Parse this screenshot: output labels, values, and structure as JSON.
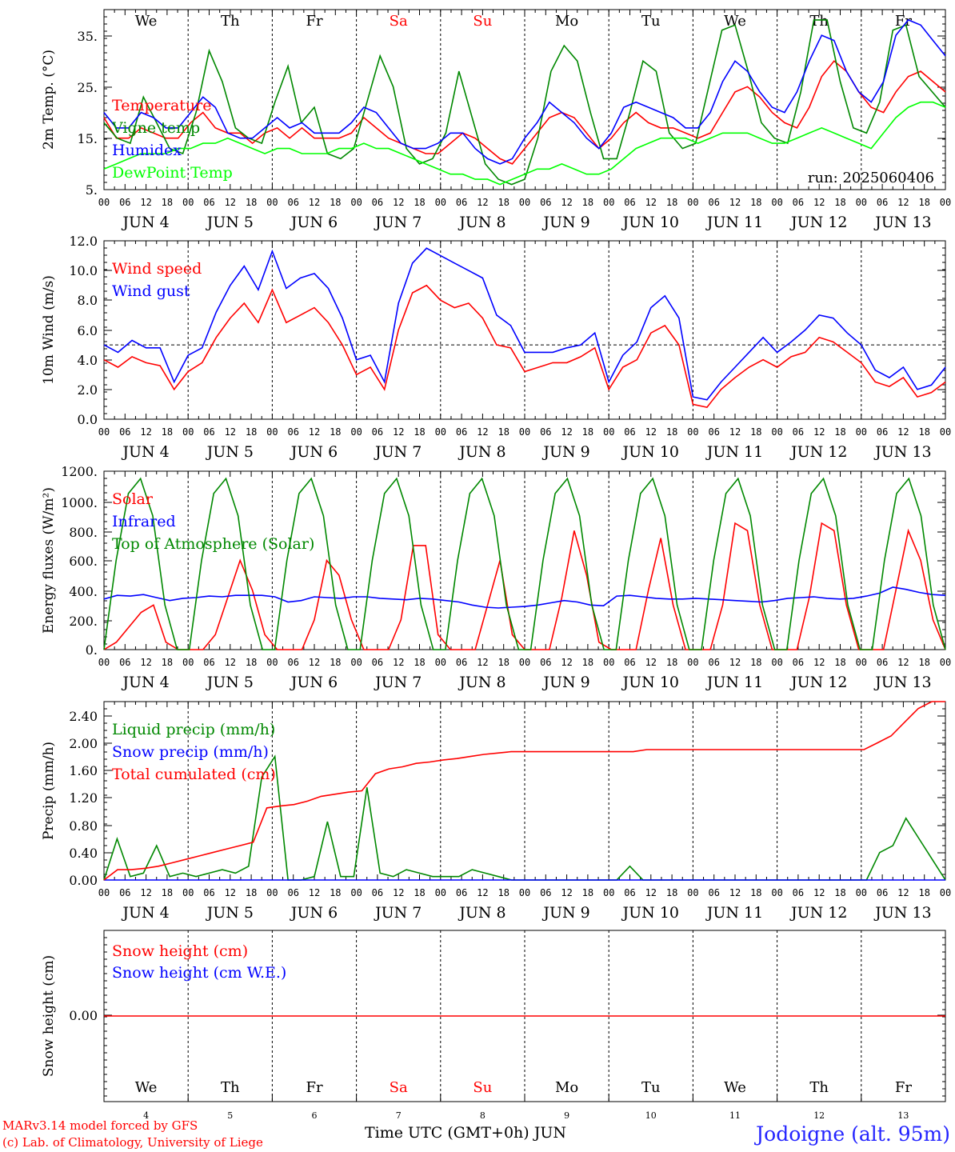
{
  "chart_data": {
    "type": "line",
    "x_start": "JUN 4 00 UTC",
    "x_step_hours": 3,
    "hour_ticks": [
      "00",
      "06",
      "12",
      "18"
    ],
    "date_labels": [
      "JUN  4",
      "JUN  5",
      "JUN  6",
      "JUN  7",
      "JUN  8",
      "JUN  9",
      "JUN 10",
      "JUN 11",
      "JUN 12",
      "JUN 13"
    ],
    "weekdays": [
      "We",
      "Th",
      "Fr",
      "Sa",
      "Su",
      "Mo",
      "Tu",
      "We",
      "Th",
      "Fr"
    ],
    "weekday_colors": [
      "#000000",
      "#000000",
      "#000000",
      "#ff0000",
      "#ff0000",
      "#000000",
      "#000000",
      "#000000",
      "#000000",
      "#000000"
    ],
    "bottom_day_numbers": [
      "4",
      "5",
      "6",
      "7",
      "8",
      "9",
      "10",
      "11",
      "12",
      "13"
    ],
    "panels": [
      {
        "ylabel": "2m Temp. (°C)",
        "yticks": [
          "35.",
          "25.",
          "15.",
          "5."
        ],
        "ylim": [
          5,
          40
        ],
        "annotation": "run: 2025060406",
        "series": [
          {
            "name": "Temperature",
            "color": "#ff0000",
            "values": [
              19,
              15,
              15,
              17,
              16,
              15,
              15,
              18,
              20,
              17,
              16,
              16,
              14,
              16,
              17,
              15,
              17,
              15,
              15,
              15,
              16,
              19,
              17,
              15,
              14,
              13,
              12,
              12,
              14,
              16,
              15,
              13,
              11,
              10,
              13,
              16,
              19,
              20,
              19,
              16,
              13,
              15,
              18,
              20,
              18,
              17,
              17,
              16,
              15,
              16,
              20,
              24,
              25,
              23,
              20,
              18,
              17,
              21,
              27,
              30,
              28,
              24,
              21,
              20,
              24,
              27,
              28,
              26,
              24
            ]
          },
          {
            "name": "Vigne temp",
            "color": "#008800",
            "values": [
              18,
              15,
              14,
              23,
              18,
              13,
              12,
              20,
              32,
              26,
              17,
              15,
              14,
              22,
              29,
              18,
              21,
              12,
              11,
              13,
              22,
              31,
              25,
              13,
              10,
              11,
              16,
              28,
              19,
              10,
              7,
              6,
              7,
              15,
              28,
              33,
              30,
              20,
              11,
              11,
              20,
              30,
              28,
              16,
              13,
              14,
              25,
              36,
              37,
              28,
              18,
              15,
              14,
              24,
              38,
              38,
              26,
              17,
              16,
              22,
              36,
              37,
              27,
              24,
              21
            ]
          },
          {
            "name": "Humidex",
            "color": "#0000ff",
            "values": [
              20,
              17,
              17,
              20,
              19,
              17,
              17,
              20,
              23,
              21,
              16,
              15,
              15,
              17,
              19,
              17,
              18,
              16,
              16,
              16,
              18,
              21,
              20,
              17,
              14,
              13,
              13,
              14,
              16,
              16,
              13,
              11,
              10,
              11,
              15,
              18,
              22,
              20,
              18,
              15,
              13,
              16,
              21,
              22,
              21,
              20,
              19,
              17,
              17,
              20,
              26,
              30,
              28,
              24,
              21,
              20,
              24,
              30,
              35,
              34,
              28,
              24,
              22,
              26,
              35,
              38,
              37,
              34,
              31
            ]
          },
          {
            "name": "DewPoint Temp",
            "color": "#00ff00",
            "values": [
              9,
              10,
              11,
              12,
              12,
              12,
              13,
              13,
              14,
              14,
              15,
              14,
              13,
              12,
              13,
              13,
              12,
              12,
              12,
              13,
              13,
              14,
              13,
              13,
              12,
              11,
              10,
              9,
              8,
              8,
              7,
              7,
              6,
              7,
              8,
              9,
              9,
              10,
              9,
              8,
              8,
              9,
              11,
              13,
              14,
              15,
              15,
              15,
              14,
              15,
              16,
              16,
              16,
              15,
              14,
              14,
              15,
              16,
              17,
              16,
              15,
              14,
              13,
              16,
              19,
              21,
              22,
              22,
              21
            ]
          }
        ]
      },
      {
        "ylabel": "10m Wind (m/s)",
        "yticks": [
          "12.0",
          "10.0",
          "8.0",
          "6.0",
          "4.0",
          "2.0",
          "0.0"
        ],
        "ylim": [
          0,
          12
        ],
        "reference_line": 5,
        "series": [
          {
            "name": "Wind speed",
            "color": "#ff0000",
            "values": [
              4.0,
              3.5,
              4.2,
              3.8,
              3.6,
              2.0,
              3.2,
              3.8,
              5.5,
              6.8,
              7.8,
              6.5,
              8.7,
              6.5,
              7.0,
              7.5,
              6.5,
              5.0,
              3.0,
              3.5,
              2.0,
              6.0,
              8.5,
              9.0,
              8.0,
              7.5,
              7.8,
              6.8,
              5.0,
              4.8,
              3.2,
              3.5,
              3.8,
              3.8,
              4.2,
              4.8,
              2.0,
              3.5,
              4.0,
              5.8,
              6.3,
              5.0,
              1.0,
              0.8,
              2.0,
              2.8,
              3.5,
              4.0,
              3.5,
              4.2,
              4.5,
              5.5,
              5.2,
              4.5,
              3.8,
              2.5,
              2.2,
              2.8,
              1.5,
              1.8,
              2.5
            ]
          },
          {
            "name": "Wind gust",
            "color": "#0000ff",
            "values": [
              5.0,
              4.5,
              5.3,
              4.8,
              4.8,
              2.5,
              4.3,
              4.8,
              7.2,
              9.0,
              10.3,
              8.7,
              11.3,
              8.8,
              9.5,
              9.8,
              8.8,
              6.8,
              4.0,
              4.3,
              2.5,
              7.8,
              10.5,
              11.5,
              11.0,
              10.5,
              10.0,
              9.5,
              7.0,
              6.3,
              4.5,
              4.5,
              4.5,
              4.8,
              5.0,
              5.8,
              2.5,
              4.3,
              5.2,
              7.5,
              8.3,
              6.8,
              1.5,
              1.3,
              2.5,
              3.5,
              4.5,
              5.5,
              4.5,
              5.2,
              6.0,
              7.0,
              6.8,
              5.8,
              5.0,
              3.3,
              2.8,
              3.5,
              2.0,
              2.3,
              3.5
            ]
          }
        ]
      },
      {
        "ylabel": "Energy fluxes (W/m²)",
        "yticks": [
          "1200.",
          "1000.",
          "800.",
          "600.",
          "400.",
          "200.",
          "0."
        ],
        "ylim": [
          0,
          1200
        ],
        "series": [
          {
            "name": "Solar",
            "color": "#ff0000",
            "values": [
              0,
              50,
              150,
              250,
              300,
              50,
              0,
              0,
              0,
              100,
              350,
              600,
              400,
              100,
              0,
              0,
              0,
              200,
              600,
              500,
              200,
              0,
              0,
              0,
              200,
              700,
              700,
              100,
              0,
              0,
              0,
              300,
              600,
              100,
              0,
              0,
              0,
              350,
              800,
              500,
              50,
              0,
              0,
              0,
              400,
              750,
              300,
              0,
              0,
              0,
              300,
              850,
              800,
              300,
              0,
              0,
              0,
              350,
              850,
              800,
              300,
              0,
              0,
              0,
              400,
              800,
              600,
              200,
              0
            ]
          },
          {
            "name": "Infrared",
            "color": "#0000ff",
            "values": [
              340,
              365,
              360,
              370,
              350,
              330,
              345,
              350,
              360,
              355,
              365,
              365,
              365,
              355,
              320,
              330,
              355,
              350,
              345,
              355,
              355,
              345,
              340,
              335,
              345,
              340,
              330,
              320,
              300,
              285,
              280,
              285,
              290,
              300,
              315,
              330,
              320,
              300,
              295,
              360,
              365,
              355,
              345,
              340,
              340,
              345,
              340,
              335,
              330,
              325,
              320,
              330,
              345,
              350,
              355,
              345,
              340,
              345,
              360,
              380,
              420,
              405,
              385,
              370,
              365
            ]
          },
          {
            "name": "Top of Atmosphere (Solar)",
            "color": "#008800",
            "values": [
              0,
              600,
              1050,
              1150,
              900,
              300,
              0,
              0,
              600,
              1050,
              1150,
              900,
              300,
              0,
              0,
              600,
              1050,
              1150,
              900,
              300,
              0,
              0,
              600,
              1050,
              1150,
              900,
              300,
              0,
              0,
              600,
              1050,
              1150,
              900,
              300,
              0,
              0,
              600,
              1050,
              1150,
              900,
              300,
              0,
              0,
              600,
              1050,
              1150,
              900,
              300,
              0,
              0,
              600,
              1050,
              1150,
              900,
              300,
              0,
              0,
              600,
              1050,
              1150,
              900,
              300,
              0,
              0,
              600,
              1050,
              1150,
              900,
              300,
              0
            ]
          }
        ]
      },
      {
        "ylabel": "Precip (mm/h)",
        "yticks": [
          "2.40",
          "2.00",
          "1.60",
          "1.20",
          "0.80",
          "0.40",
          "0.00"
        ],
        "ylim": [
          0,
          2.6
        ],
        "series": [
          {
            "name": "Liquid precip (mm/h)",
            "color": "#008800",
            "values": [
              0,
              0.6,
              0.05,
              0.1,
              0.5,
              0.05,
              0.1,
              0.05,
              0.1,
              0.15,
              0.1,
              0.2,
              1.5,
              1.8,
              0,
              0,
              0.05,
              0.85,
              0.05,
              0.05,
              1.35,
              0.1,
              0.05,
              0.15,
              0.1,
              0.05,
              0.05,
              0.05,
              0.15,
              0.1,
              0.05,
              0,
              0,
              0,
              0,
              0,
              0,
              0,
              0,
              0,
              0.2,
              0,
              0,
              0,
              0,
              0,
              0,
              0,
              0,
              0,
              0,
              0,
              0,
              0,
              0,
              0,
              0,
              0,
              0,
              0.4,
              0.5,
              0.9,
              0.6,
              0.3,
              0
            ]
          },
          {
            "name": "Snow precip (mm/h)",
            "color": "#0000ff",
            "values": [
              0,
              0,
              0,
              0,
              0,
              0,
              0,
              0,
              0,
              0,
              0,
              0,
              0,
              0,
              0,
              0,
              0,
              0,
              0,
              0,
              0,
              0,
              0,
              0,
              0,
              0,
              0,
              0,
              0,
              0,
              0,
              0,
              0,
              0,
              0,
              0,
              0,
              0,
              0,
              0,
              0,
              0,
              0,
              0,
              0,
              0,
              0,
              0,
              0,
              0,
              0,
              0,
              0,
              0,
              0,
              0,
              0,
              0,
              0,
              0,
              0,
              0,
              0,
              0,
              0
            ]
          },
          {
            "name": "Total cumulated (cm)",
            "color": "#ff0000",
            "values": [
              0,
              0.15,
              0.15,
              0.17,
              0.2,
              0.25,
              0.3,
              0.35,
              0.4,
              0.45,
              0.5,
              0.55,
              1.05,
              1.08,
              1.1,
              1.15,
              1.22,
              1.25,
              1.28,
              1.3,
              1.55,
              1.62,
              1.65,
              1.7,
              1.72,
              1.75,
              1.77,
              1.8,
              1.83,
              1.85,
              1.87,
              1.87,
              1.87,
              1.87,
              1.87,
              1.87,
              1.87,
              1.87,
              1.87,
              1.87,
              1.9,
              1.9,
              1.9,
              1.9,
              1.9,
              1.9,
              1.9,
              1.9,
              1.9,
              1.9,
              1.9,
              1.9,
              1.9,
              1.9,
              1.9,
              1.9,
              1.9,
              2.0,
              2.1,
              2.3,
              2.5,
              2.6,
              2.6
            ]
          }
        ]
      },
      {
        "ylabel": "Snow height (cm)",
        "yticks": [
          "0.00"
        ],
        "ylim": [
          -1,
          1
        ],
        "series": [
          {
            "name": "Snow height (cm)",
            "color": "#ff0000",
            "values": [
              0,
              0
            ]
          },
          {
            "name": "Snow height (cm W.E.)",
            "color": "#0000ff",
            "values": []
          }
        ]
      }
    ]
  },
  "footer": {
    "model": "MARv3.14 model forced by GFS",
    "copyright": "(c) Lab. of Climatology, University of Liege",
    "xlabel": "Time UTC (GMT+0h) JUN",
    "station": "Jodoigne (alt. 95m)"
  }
}
